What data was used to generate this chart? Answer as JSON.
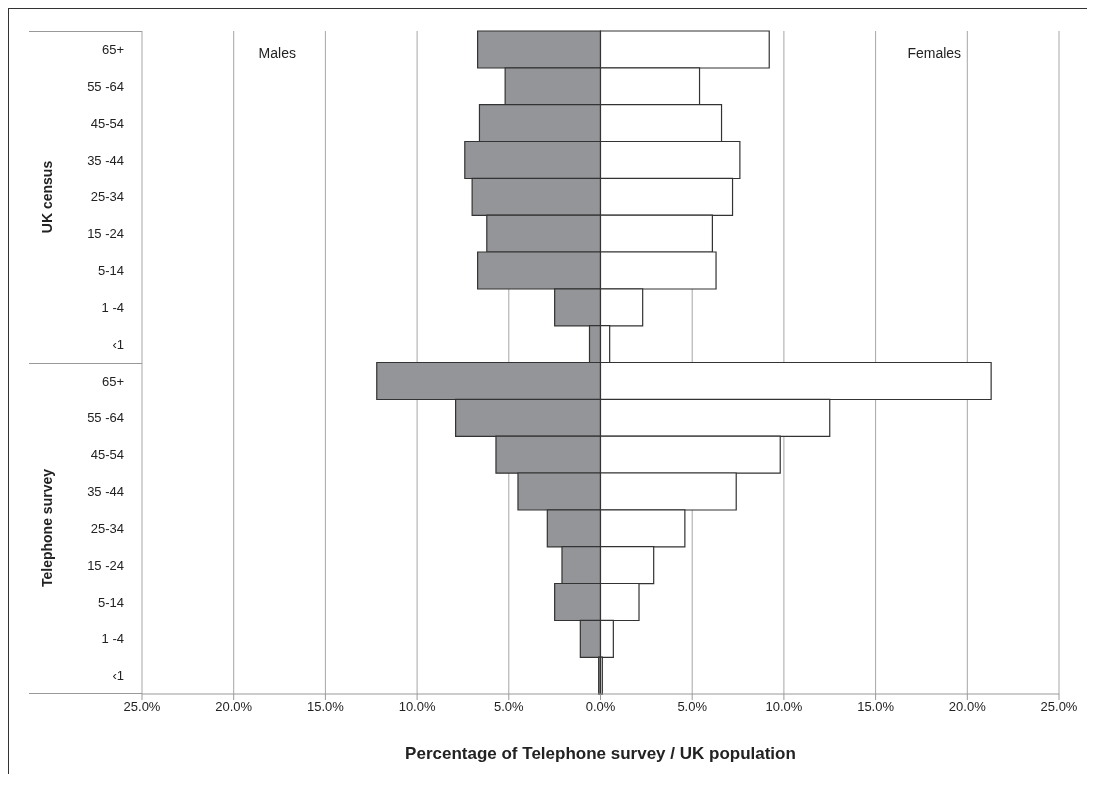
{
  "chart_data": {
    "type": "bar",
    "orientation": "horizontal",
    "stacked": true,
    "xlabel": "Percentage of Telephone survey / UK population",
    "categories": [
      "65+",
      "55 -64",
      "45-54",
      "35 -44",
      "25-34",
      "15 -24",
      "5-14",
      "1 -4",
      "‹1",
      "65+",
      "55 -64",
      "45-54",
      "35 -44",
      "25-34",
      "15 -24",
      "5-14",
      "1 -4",
      "‹1"
    ],
    "series": [
      {
        "color": "#939598",
        "values": [
          -6.7,
          -5.2,
          -6.6,
          -7.4,
          -7.0,
          -6.2,
          -6.7,
          -2.5,
          -0.6,
          -12.2,
          -7.9,
          -5.7,
          -4.5,
          -2.9,
          -2.1,
          -2.5,
          -1.1,
          -0.1
        ]
      },
      {
        "color": "#ffffff",
        "values": [
          9.2,
          5.4,
          6.6,
          7.6,
          7.2,
          6.1,
          6.3,
          2.3,
          0.5,
          21.3,
          12.5,
          9.8,
          7.4,
          4.6,
          2.9,
          2.1,
          0.7,
          0.1
        ]
      }
    ],
    "annotations": [
      "UK census",
      "Telephone survey",
      "Males",
      "Females"
    ],
    "xlim": [
      -25,
      25
    ],
    "xticks": [
      {
        "value": -25,
        "label": "25.0%"
      },
      {
        "value": -20,
        "label": "20.0%"
      },
      {
        "value": -15,
        "label": "15.0%"
      },
      {
        "value": -10,
        "label": "10.0%"
      },
      {
        "value": -5,
        "label": "5.0%"
      },
      {
        "value": 0,
        "label": "0.0%"
      },
      {
        "value": 5,
        "label": "5.0%"
      },
      {
        "value": 10,
        "label": "10.0%"
      },
      {
        "value": 15,
        "label": "15.0%"
      },
      {
        "value": 20,
        "label": "20.0%"
      },
      {
        "value": 25,
        "label": "25.0%"
      }
    ],
    "grid": "x",
    "legend": false
  }
}
